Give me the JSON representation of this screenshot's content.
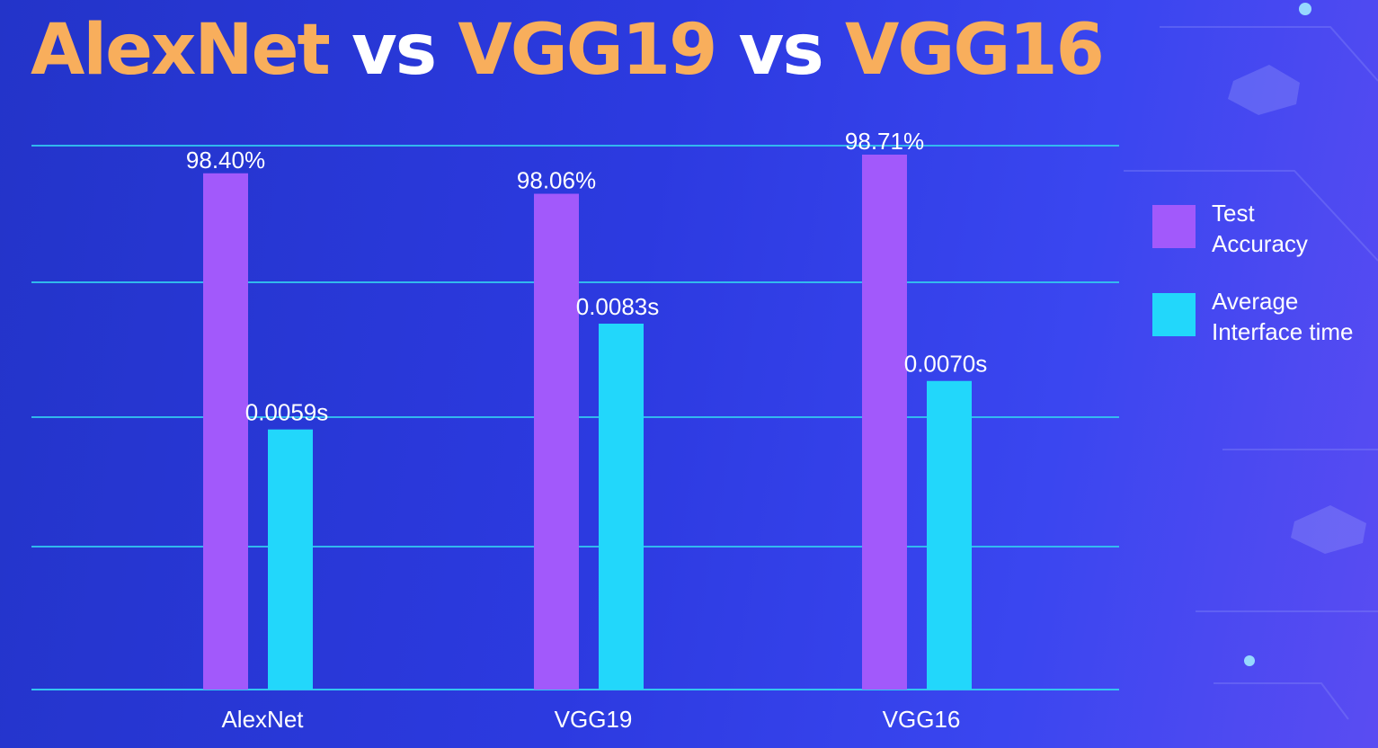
{
  "title": {
    "part1": "AlexNet",
    "part2": " vs ",
    "part3": "VGG19",
    "part4": " vs ",
    "part5": "VGG16"
  },
  "chart_data": {
    "type": "bar",
    "categories": [
      "AlexNet",
      "VGG19",
      "VGG16"
    ],
    "series": [
      {
        "name": "Test Accuracy",
        "values": [
          98.4,
          98.06,
          98.71
        ],
        "labels": [
          "98.40%",
          "98.06%",
          "98.71%"
        ],
        "color": "#a259fb"
      },
      {
        "name": "Average Interface time",
        "values": [
          0.0059,
          0.0083,
          0.007
        ],
        "labels": [
          "0.0059s",
          "0.0083s",
          "0.0070s"
        ],
        "color": "#22d7fb"
      }
    ],
    "legend": "right",
    "grid": true,
    "xlabel": "",
    "ylabel": ""
  },
  "legend": [
    {
      "line1": "Test",
      "line2": "Accuracy",
      "color": "#a259fb"
    },
    {
      "line1": "Average",
      "line2": "Interface time",
      "color": "#22d7fb"
    }
  ],
  "colors": {
    "accent": "#f8ae5c",
    "grid": "#33c6f0"
  }
}
